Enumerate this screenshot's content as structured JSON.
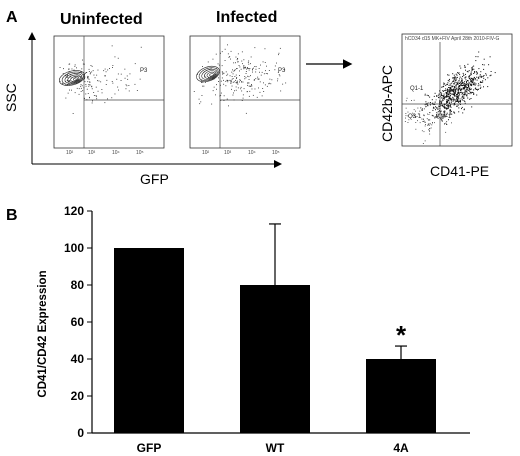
{
  "panel_a": {
    "letter": "A",
    "plots": [
      {
        "title": "Uninfected",
        "gate": "P3"
      },
      {
        "title": "Infected",
        "gate": "P3"
      }
    ],
    "y_axis_label": "SSC",
    "x_axis_label": "GFP",
    "result_plot": {
      "header": "hCD34 d15 MK+FIV April 28th 2010-FIV-G",
      "y_axis_label": "CD42b-APC",
      "x_axis_label": "CD41-PE",
      "quadrants": [
        "Q1-1",
        "Q3-1",
        "Q4-1"
      ]
    }
  },
  "panel_b": {
    "letter": "B"
  },
  "chart_data": {
    "type": "bar",
    "categories": [
      "GFP",
      "WT",
      "4A"
    ],
    "values": [
      100,
      80,
      40
    ],
    "error_plus": [
      0,
      33,
      7
    ],
    "annotations": [
      {
        "category": "4A",
        "text": "*"
      }
    ],
    "title": "",
    "xlabel": "",
    "ylabel": "CD41/CD42 Expression",
    "ylim": [
      0,
      120
    ],
    "yticks": [
      0,
      20,
      40,
      60,
      80,
      100,
      120
    ],
    "grid": false,
    "bar_color": "#000000"
  }
}
